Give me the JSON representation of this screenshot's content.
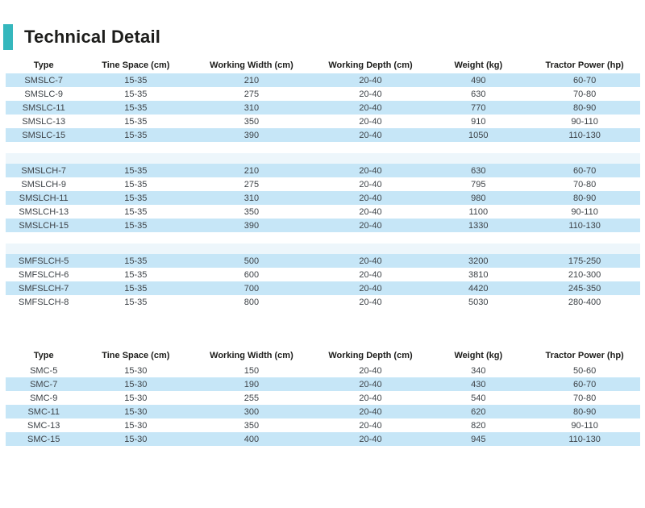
{
  "page": {
    "title": "Technical Detail",
    "accent_color": "#35b7bd",
    "row_highlight_color": "#c6e6f7",
    "gap_tint_color": "#edf6fb",
    "header_text_color": "#1d1d1b",
    "data_text_color": "#3d4247"
  },
  "columns": [
    "Type",
    "Tine Space (cm)",
    "Working Width (cm)",
    "Working Depth (cm)",
    "Weight (kg)",
    "Tractor Power (hp)"
  ],
  "tables": [
    {
      "name": "smslc-series-table",
      "groups": [
        {
          "zebra_start": "blue",
          "rows": [
            [
              "SMSLC-7",
              "15-35",
              "210",
              "20-40",
              "490",
              "60-70"
            ],
            [
              "SMSLC-9",
              "15-35",
              "275",
              "20-40",
              "630",
              "70-80"
            ],
            [
              "SMSLC-11",
              "15-35",
              "310",
              "20-40",
              "770",
              "80-90"
            ],
            [
              "SMSLC-13",
              "15-35",
              "350",
              "20-40",
              "910",
              "90-110"
            ],
            [
              "SMSLC-15",
              "15-35",
              "390",
              "20-40",
              "1050",
              "110-130"
            ]
          ]
        },
        {
          "zebra_start": "blue",
          "rows": [
            [
              "SMSLCH-7",
              "15-35",
              "210",
              "20-40",
              "630",
              "60-70"
            ],
            [
              "SMSLCH-9",
              "15-35",
              "275",
              "20-40",
              "795",
              "70-80"
            ],
            [
              "SMSLCH-11",
              "15-35",
              "310",
              "20-40",
              "980",
              "80-90"
            ],
            [
              "SMSLCH-13",
              "15-35",
              "350",
              "20-40",
              "1100",
              "90-110"
            ],
            [
              "SMSLCH-15",
              "15-35",
              "390",
              "20-40",
              "1330",
              "110-130"
            ]
          ]
        },
        {
          "zebra_start": "blue",
          "rows": [
            [
              "SMFSLCH-5",
              "15-35",
              "500",
              "20-40",
              "3200",
              "175-250"
            ],
            [
              "SMFSLCH-6",
              "15-35",
              "600",
              "20-40",
              "3810",
              "210-300"
            ],
            [
              "SMFSLCH-7",
              "15-35",
              "700",
              "20-40",
              "4420",
              "245-350"
            ],
            [
              "SMFSLCH-8",
              "15-35",
              "800",
              "20-40",
              "5030",
              "280-400"
            ]
          ]
        }
      ]
    },
    {
      "name": "smc-series-table",
      "groups": [
        {
          "zebra_start": "white",
          "rows": [
            [
              "SMC-5",
              "15-30",
              "150",
              "20-40",
              "340",
              "50-60"
            ],
            [
              "SMC-7",
              "15-30",
              "190",
              "20-40",
              "430",
              "60-70"
            ],
            [
              "SMC-9",
              "15-30",
              "255",
              "20-40",
              "540",
              "70-80"
            ],
            [
              "SMC-11",
              "15-30",
              "300",
              "20-40",
              "620",
              "80-90"
            ],
            [
              "SMC-13",
              "15-30",
              "350",
              "20-40",
              "820",
              "90-110"
            ],
            [
              "SMC-15",
              "15-30",
              "400",
              "20-40",
              "945",
              "110-130"
            ]
          ]
        }
      ]
    }
  ]
}
